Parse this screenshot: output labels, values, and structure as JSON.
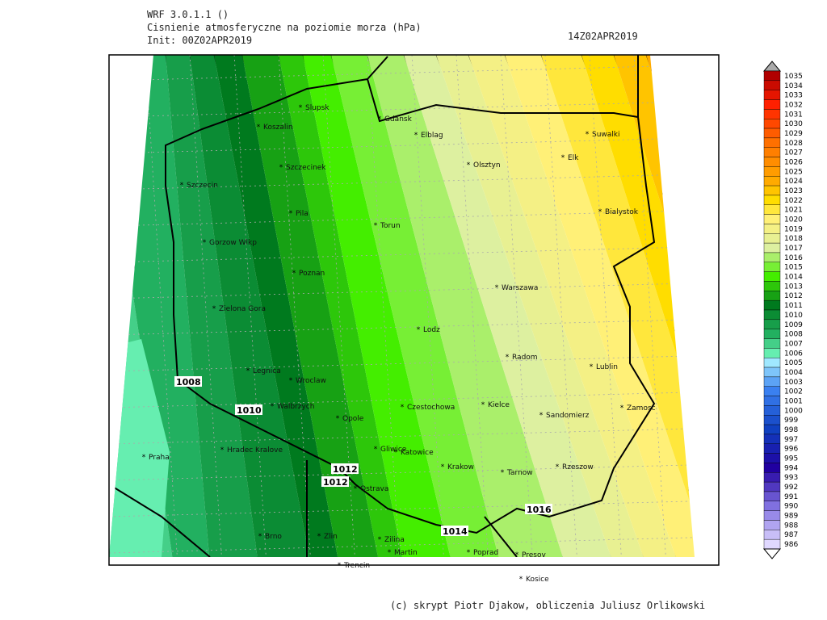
{
  "header": {
    "model": "WRF 3.0.1.1 ()",
    "title": "Cisnienie atmosferyczne na poziomie morza (hPa)",
    "init": "Init: 00Z02APR2019",
    "valid": "14Z02APR2019"
  },
  "cities": [
    "Slupsk",
    "Koszalin",
    "Gdansk",
    "Elblag",
    "Olsztyn",
    "Suwalki",
    "Elk",
    "Szczecinek",
    "Szczecin",
    "Pila",
    "Torun",
    "Bialystok",
    "Gorzow Wlkp",
    "Poznan",
    "Warszawa",
    "Zielona Gora",
    "Lodz",
    "Radom",
    "Lublin",
    "Legnica",
    "Wroclaw",
    "Walbrzych",
    "Czestochowa",
    "Kielce",
    "Sandomierz",
    "Zamosc",
    "Opole",
    "Hradec Kralove",
    "Praha",
    "Gliwice",
    "Katowice",
    "Krakow",
    "Tarnow",
    "Rzeszow",
    "Ostrava",
    "Brno",
    "Zlin",
    "Zilina",
    "Martin",
    "Poprad",
    "Presov",
    "Trencin",
    "Kosice"
  ],
  "isobar_labels": [
    1008,
    1010,
    1012,
    1012,
    1016,
    1014
  ],
  "legend": {
    "levels": [
      1035,
      1034,
      1033,
      1032,
      1031,
      1030,
      1029,
      1028,
      1027,
      1026,
      1025,
      1024,
      1023,
      1022,
      1021,
      1020,
      1019,
      1018,
      1017,
      1016,
      1015,
      1014,
      1013,
      1012,
      1011,
      1010,
      1009,
      1008,
      1007,
      1006,
      1005,
      1004,
      1003,
      1002,
      1001,
      1000,
      999,
      998,
      997,
      996,
      995,
      994,
      993,
      992,
      991,
      990,
      989,
      988,
      987,
      986
    ]
  },
  "footer": "(c) skrypt Piotr Djakow, obliczenia Juliusz Orlikowski"
}
